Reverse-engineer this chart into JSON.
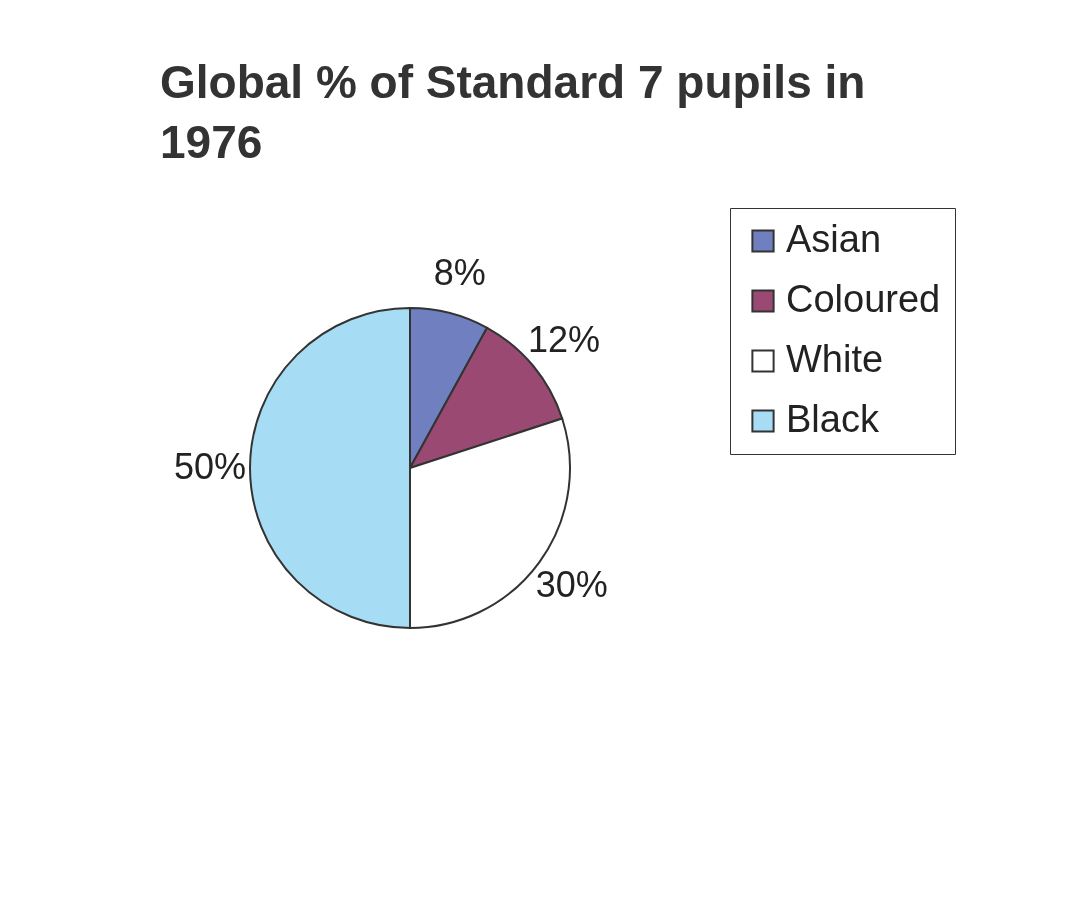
{
  "chart_data": {
    "type": "pie",
    "title": "Global % of Standard 7 pupils in 1976",
    "categories": [
      "Asian",
      "Coloured",
      "White",
      "Black"
    ],
    "values": [
      8,
      12,
      30,
      50
    ],
    "colors": [
      "#6f7fbf",
      "#9a4a72",
      "#ffffff",
      "#a6dcf4"
    ],
    "value_labels": [
      "8%",
      "12%",
      "30%",
      "50%"
    ],
    "legend": "right"
  }
}
